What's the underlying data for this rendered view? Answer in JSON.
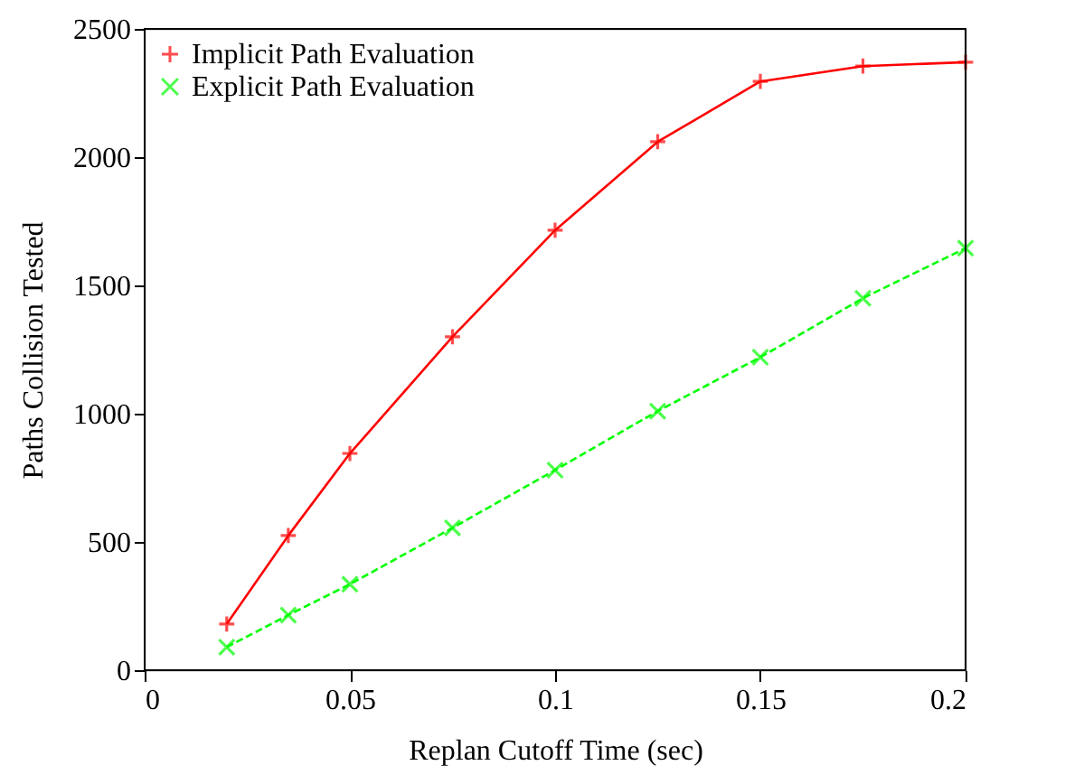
{
  "chart_data": {
    "type": "line",
    "xlabel": "Replan Cutoff Time (sec)",
    "ylabel": "Paths Collision Tested",
    "x": [
      0.02,
      0.035,
      0.05,
      0.075,
      0.1,
      0.125,
      0.15,
      0.175,
      0.2
    ],
    "series": [
      {
        "name": "Implicit Path Evaluation",
        "color": "#ff0000",
        "values": [
          180,
          525,
          845,
          1300,
          1715,
          2060,
          2295,
          2355,
          2370
        ],
        "marker": "cross",
        "line_style": "solid"
      },
      {
        "name": "Explicit Path Evaluation",
        "color": "#00ff00",
        "values": [
          90,
          215,
          335,
          555,
          780,
          1010,
          1220,
          1450,
          1645
        ],
        "marker": "x",
        "line_style": "dashed"
      }
    ],
    "xlim": [
      0,
      0.2
    ],
    "xticks": [
      0,
      0.05,
      0.1,
      0.15,
      0.2
    ],
    "ylim": [
      0,
      2500
    ],
    "yticks": [
      0,
      500,
      1000,
      1500,
      2000,
      2500
    ],
    "grid": false,
    "legend": "top left"
  }
}
